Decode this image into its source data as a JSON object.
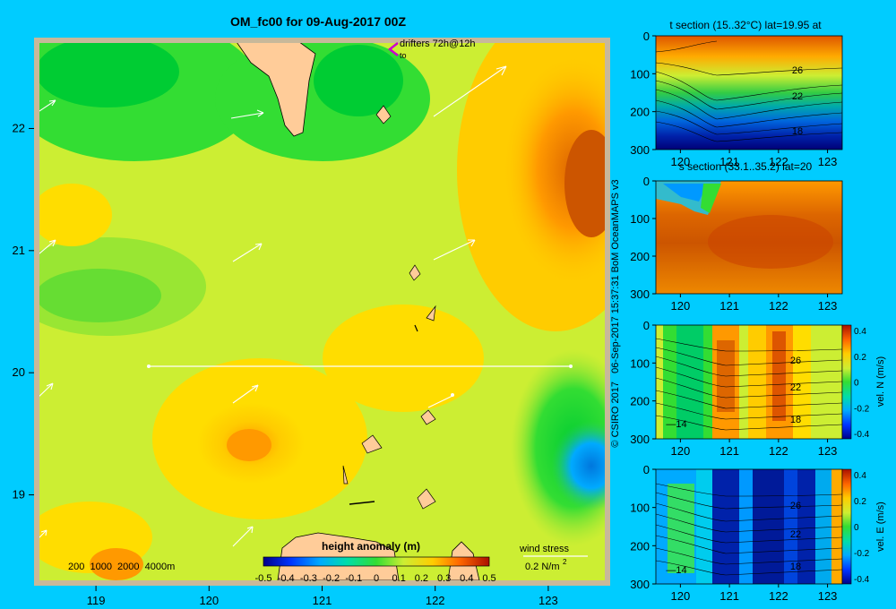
{
  "colors": {
    "background": "#00ccff",
    "land": "#ffcc99",
    "frame": "#c8b89a"
  },
  "chart_data": [
    {
      "type": "heatmap",
      "title": "OM_fc00 for 09-Aug-2017 00Z",
      "xlabel": "",
      "ylabel": "",
      "x_ticks": [
        "119",
        "120",
        "121",
        "122",
        "123"
      ],
      "y_ticks": [
        "19",
        "20",
        "21",
        "22"
      ],
      "xlim": [
        118.5,
        123.5
      ],
      "ylim": [
        18.3,
        22.7
      ],
      "colorbar": {
        "label": "height anomaly (m)",
        "ticks": [
          "-0.5",
          "-0.4",
          "-0.3",
          "-0.2",
          "-0.1",
          "0",
          "0.1",
          "0.2",
          "0.3",
          "0.4",
          "0.5"
        ],
        "range": [
          -0.5,
          0.5
        ]
      },
      "annotations": {
        "drifters": "drifters 72h@12h",
        "drifters_sub": "to",
        "depth_legend": "200  1000  2000  4000m",
        "wind_stress": "wind stress",
        "wind_scale": "0.2 N/m",
        "wind_scale_exp": "2"
      },
      "section_line": {
        "lat": 20,
        "lon_start": 119.5,
        "lon_end": 123.1
      }
    },
    {
      "type": "heatmap",
      "title": "t section (15..32°C) lat=19.95 at",
      "x_ticks": [
        "120",
        "121",
        "122",
        "123"
      ],
      "y_ticks": [
        "0",
        "100",
        "200",
        "300"
      ],
      "xlim": [
        119.5,
        123.3
      ],
      "ylim": [
        300,
        0
      ],
      "contour_labels": [
        "26",
        "22",
        "18"
      ]
    },
    {
      "type": "heatmap",
      "title": "s section (33.1..35.2) lat=20",
      "x_ticks": [
        "120",
        "121",
        "122",
        "123"
      ],
      "y_ticks": [
        "0",
        "100",
        "200",
        "300"
      ],
      "xlim": [
        119.5,
        123.3
      ],
      "ylim": [
        300,
        0
      ]
    },
    {
      "type": "heatmap",
      "title": "",
      "x_ticks": [
        "120",
        "121",
        "122",
        "123"
      ],
      "y_ticks": [
        "0",
        "100",
        "200",
        "300"
      ],
      "xlim": [
        119.5,
        123.3
      ],
      "ylim": [
        300,
        0
      ],
      "contour_labels": [
        "26",
        "22",
        "18",
        "14"
      ],
      "colorbar": {
        "label": "vel. N (m/s)",
        "ticks": [
          "0.4",
          "0.2",
          "0",
          "-0.2",
          "-0.4"
        ],
        "range": [
          -0.4,
          0.4
        ]
      }
    },
    {
      "type": "heatmap",
      "title": "",
      "x_ticks": [
        "120",
        "121",
        "122",
        "123"
      ],
      "y_ticks": [
        "0",
        "100",
        "200",
        "300"
      ],
      "xlim": [
        119.5,
        123.3
      ],
      "ylim": [
        300,
        0
      ],
      "contour_labels": [
        "26",
        "22",
        "18",
        "14"
      ],
      "colorbar": {
        "label": "vel. E (m/s)",
        "ticks": [
          "0.4",
          "0.2",
          "0",
          "-0.2",
          "-0.4"
        ],
        "range": [
          -0.4,
          0.4
        ]
      }
    }
  ],
  "credit": "© CSIRO 2017   06-Sep-2017 15:37:31 BoM OceanMAPS v3"
}
